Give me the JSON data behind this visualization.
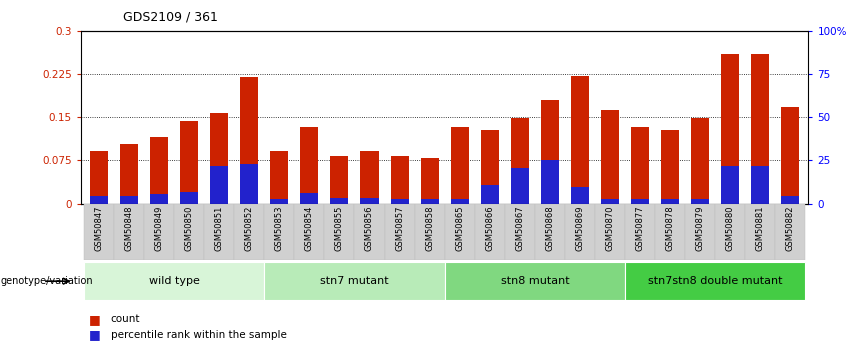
{
  "title": "GDS2109 / 361",
  "samples": [
    "GSM50847",
    "GSM50848",
    "GSM50849",
    "GSM50850",
    "GSM50851",
    "GSM50852",
    "GSM50853",
    "GSM50854",
    "GSM50855",
    "GSM50856",
    "GSM50857",
    "GSM50858",
    "GSM50865",
    "GSM50866",
    "GSM50867",
    "GSM50868",
    "GSM50869",
    "GSM50870",
    "GSM50877",
    "GSM50878",
    "GSM50879",
    "GSM50880",
    "GSM50881",
    "GSM50882"
  ],
  "count_values": [
    0.092,
    0.103,
    0.115,
    0.143,
    0.157,
    0.22,
    0.092,
    0.133,
    0.083,
    0.092,
    0.083,
    0.08,
    0.133,
    0.128,
    0.148,
    0.18,
    0.222,
    0.163,
    0.133,
    0.128,
    0.148,
    0.26,
    0.26,
    0.168
  ],
  "percentile_values": [
    0.013,
    0.013,
    0.016,
    0.02,
    0.065,
    0.068,
    0.008,
    0.018,
    0.01,
    0.01,
    0.008,
    0.008,
    0.008,
    0.032,
    0.062,
    0.075,
    0.028,
    0.008,
    0.008,
    0.008,
    0.008,
    0.065,
    0.065,
    0.013
  ],
  "bar_color_red": "#cc2200",
  "bar_color_blue": "#2222cc",
  "ylim_left": [
    0,
    0.3
  ],
  "yticks_left": [
    0,
    0.075,
    0.15,
    0.225,
    0.3
  ],
  "ytick_labels_left": [
    "0",
    "0.075",
    "0.15",
    "0.225",
    "0.3"
  ],
  "yticks_right": [
    0,
    25,
    50,
    75,
    100
  ],
  "ytick_labels_right": [
    "0",
    "25",
    "50",
    "75",
    "100%"
  ],
  "grid_lines": [
    0.075,
    0.15,
    0.225
  ],
  "group_defs": [
    {
      "label": "wild type",
      "start": 0,
      "end": 5,
      "color": "#d8f5d8"
    },
    {
      "label": "stn7 mutant",
      "start": 6,
      "end": 11,
      "color": "#b8ebb8"
    },
    {
      "label": "stn8 mutant",
      "start": 12,
      "end": 17,
      "color": "#80d880"
    },
    {
      "label": "stn7stn8 double mutant",
      "start": 18,
      "end": 23,
      "color": "#44cc44"
    }
  ],
  "legend_count": "count",
  "legend_percentile": "percentile rank within the sample"
}
